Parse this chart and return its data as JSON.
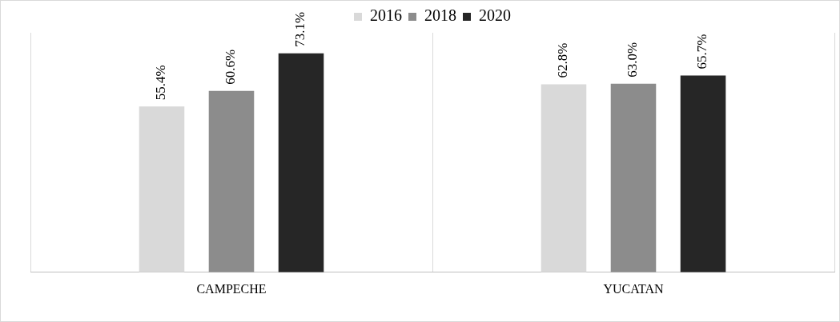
{
  "chart_data": {
    "type": "bar",
    "categories": [
      "CAMPECHE",
      "YUCATAN"
    ],
    "series": [
      {
        "name": "2016",
        "color": "#d9d9d9",
        "values": [
          55.4,
          62.8
        ],
        "value_labels": [
          "55.4%",
          "62.8%"
        ]
      },
      {
        "name": "2018",
        "color": "#8c8c8c",
        "values": [
          60.6,
          63.0
        ],
        "value_labels": [
          "60.6%",
          "63.0%"
        ]
      },
      {
        "name": "2020",
        "color": "#262626",
        "values": [
          73.1,
          65.7
        ],
        "value_labels": [
          "73.1%",
          "65.7%"
        ]
      }
    ],
    "legend": "top",
    "grid": "x",
    "tick_labels": "x"
  }
}
